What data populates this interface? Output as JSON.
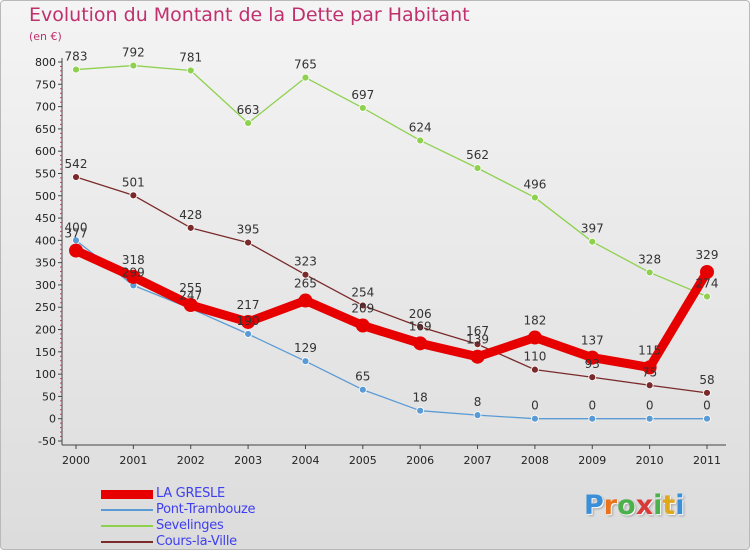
{
  "title": "Evolution du Montant de la Dette par Habitant",
  "unit": "(en €)",
  "logo": {
    "letters": [
      "P",
      "r",
      "o",
      "x",
      "i",
      "t",
      "i"
    ],
    "colors": [
      "#3a8fd8",
      "#e8731c",
      "#4cb04c",
      "#d83a3a",
      "#4cb04c",
      "#e0a81c",
      "#3a8fd8"
    ]
  },
  "chart_data": {
    "type": "line",
    "x": [
      "2000",
      "2001",
      "2002",
      "2003",
      "2004",
      "2005",
      "2006",
      "2007",
      "2008",
      "2009",
      "2010",
      "2011"
    ],
    "ylim": [
      -50,
      800
    ],
    "yticks": [
      -50,
      0,
      50,
      100,
      150,
      200,
      250,
      300,
      350,
      400,
      450,
      500,
      550,
      600,
      650,
      700,
      750,
      800
    ],
    "grid": false,
    "legend": "bottom-left",
    "series": [
      {
        "name": "Sevelinges",
        "color": "#8fd14f",
        "values": [
          783,
          792,
          781,
          663,
          765,
          697,
          624,
          562,
          496,
          397,
          328,
          274
        ],
        "labels": [
          "783",
          "792",
          "781",
          "663",
          "765",
          "697",
          "624",
          "562",
          "496",
          "397",
          "328",
          "274"
        ]
      },
      {
        "name": "Cours-la-Ville",
        "color": "#7a2a2a",
        "values": [
          542,
          501,
          428,
          395,
          323,
          254,
          206,
          167,
          110,
          93,
          75,
          58
        ],
        "labels": [
          "542",
          "501",
          "428",
          "395",
          "323",
          "254",
          "206",
          "167",
          "110",
          "93",
          "75",
          "58"
        ]
      },
      {
        "name": "Pont-Trambouze",
        "color": "#5b9bd5",
        "values": [
          400,
          299,
          247,
          190,
          129,
          65,
          18,
          8,
          0,
          0,
          0,
          0
        ],
        "labels": [
          "400",
          "299",
          "247",
          "190",
          "129",
          "65",
          "18",
          "8",
          "0",
          "0",
          "0",
          "0"
        ]
      },
      {
        "name": "LA GRESLE",
        "color": "#e60000",
        "values": [
          377,
          318,
          255,
          217,
          265,
          209,
          169,
          139,
          182,
          137,
          115,
          329
        ],
        "labels": [
          "377",
          "318",
          "255",
          "217",
          "265",
          "209",
          "169",
          "139",
          "182",
          "137",
          "115",
          "329"
        ]
      }
    ],
    "legend_entries": [
      "LA GRESLE",
      "Pont-Trambouze",
      "Sevelinges",
      "Cours-la-Ville"
    ]
  }
}
